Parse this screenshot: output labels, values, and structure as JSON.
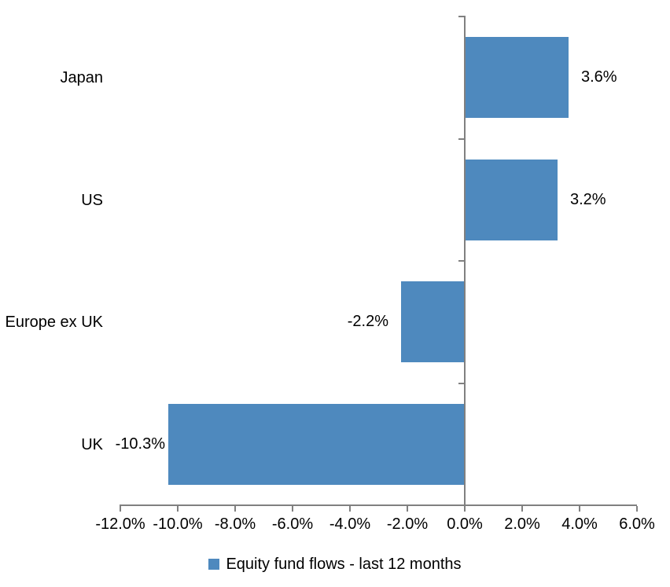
{
  "chart_data": {
    "type": "bar",
    "orientation": "horizontal",
    "title": "",
    "categories": [
      "Japan",
      "US",
      "Europe ex UK",
      "UK"
    ],
    "series": [
      {
        "name": "Equity fund flows - last 12 months",
        "values": [
          3.6,
          3.2,
          -2.2,
          -10.3
        ]
      }
    ],
    "data_labels": [
      "3.6%",
      "3.2%",
      "-2.2%",
      "-10.3%"
    ],
    "x_tick_labels": [
      "-12.0%",
      "-10.0%",
      "-8.0%",
      "-6.0%",
      "-4.0%",
      "-2.0%",
      "0.0%",
      "2.0%",
      "4.0%",
      "6.0%"
    ],
    "x_tick_values": [
      -12,
      -10,
      -8,
      -6,
      -4,
      -2,
      0,
      2,
      4,
      6
    ],
    "xlim": [
      -12,
      6
    ],
    "grid": false,
    "legend": {
      "label": "Equity fund flows - last 12 months",
      "position": "bottom"
    },
    "colors": {
      "bar": "#4E89BE",
      "axis": "#808080",
      "text": "#000000",
      "background": "#FFFFFF"
    }
  }
}
